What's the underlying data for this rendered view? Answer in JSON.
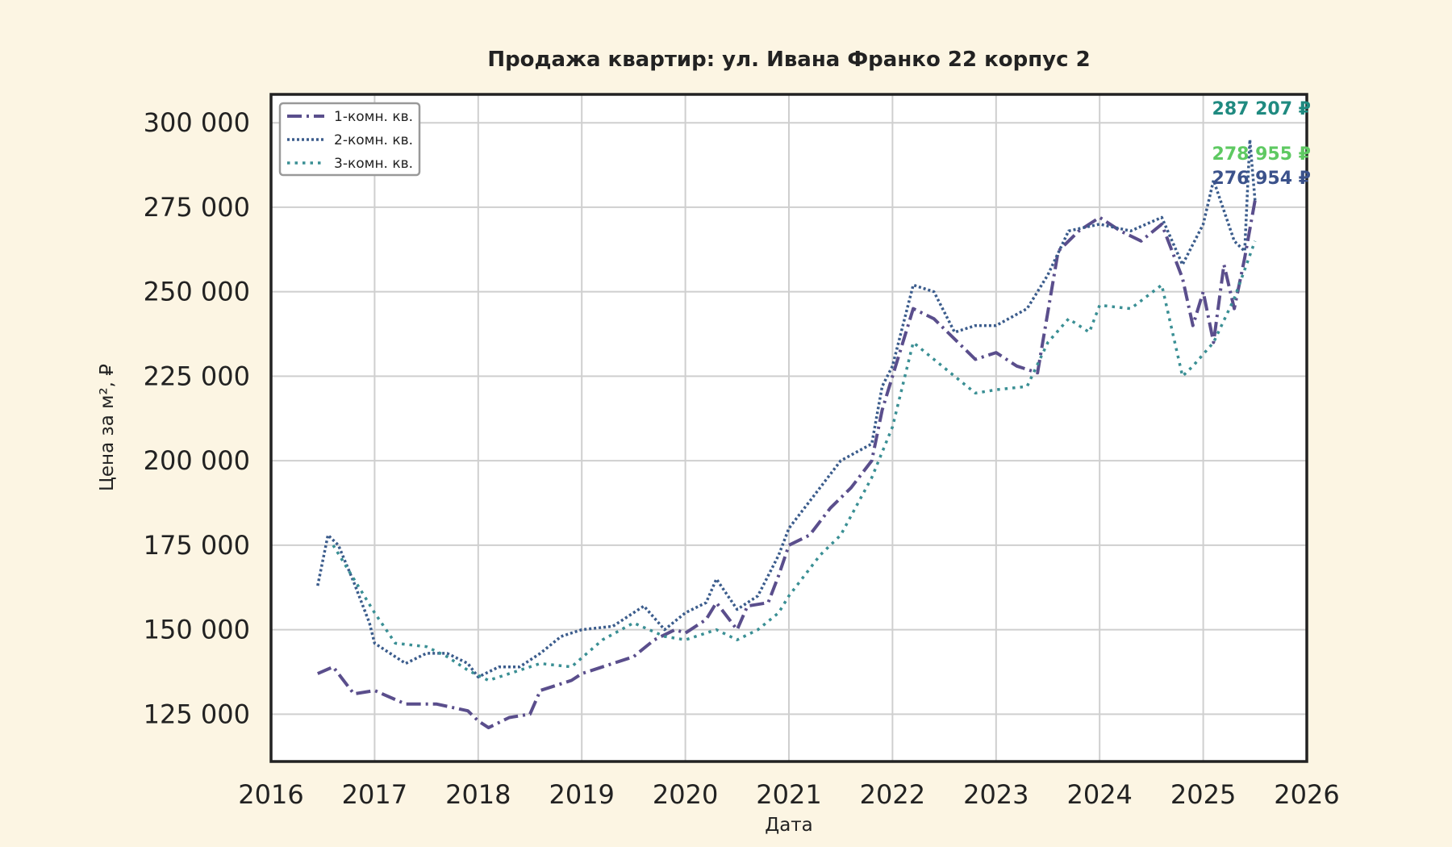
{
  "chart_data": {
    "type": "line",
    "title": "Продажа квартир: ул. Ивана Франко 22 корпус 2",
    "xlabel": "Дата",
    "ylabel": "Цена за м², ₽",
    "xlim": [
      2016,
      2026
    ],
    "ylim": [
      111000,
      308400
    ],
    "grid": true,
    "legend_placement": "top-left",
    "x_ticks": [
      "2016",
      "2017",
      "2018",
      "2019",
      "2020",
      "2021",
      "2022",
      "2023",
      "2024",
      "2025",
      "2026"
    ],
    "y_ticks": [
      125000,
      150000,
      175000,
      200000,
      225000,
      250000,
      275000,
      300000
    ],
    "y_tick_labels": [
      "125 000",
      "150 000",
      "175 000",
      "200 000",
      "225 000",
      "250 000",
      "275 000",
      "300 000"
    ],
    "background": "#fcf5e3",
    "series": [
      {
        "name": "1-комн. кв.",
        "color": "#5a4e8c",
        "style": "dashdot",
        "x": [
          2016.45,
          2016.6,
          2016.8,
          2017.0,
          2017.3,
          2017.6,
          2017.9,
          2018.0,
          2018.1,
          2018.3,
          2018.5,
          2018.6,
          2018.9,
          2019.0,
          2019.3,
          2019.5,
          2019.7,
          2019.9,
          2020.0,
          2020.2,
          2020.3,
          2020.5,
          2020.6,
          2020.8,
          2020.9,
          2021.0,
          2021.2,
          2021.4,
          2021.6,
          2021.8,
          2021.9,
          2022.0,
          2022.2,
          2022.4,
          2022.6,
          2022.8,
          2023.0,
          2023.2,
          2023.4,
          2023.6,
          2023.8,
          2024.0,
          2024.2,
          2024.4,
          2024.6,
          2024.8,
          2024.9,
          2025.0,
          2025.1,
          2025.2,
          2025.3,
          2025.4,
          2025.5
        ],
        "y": [
          137000,
          139000,
          131000,
          132000,
          128000,
          128000,
          126000,
          123000,
          121000,
          124000,
          125000,
          132000,
          135000,
          137000,
          140000,
          142000,
          147000,
          150000,
          149000,
          153000,
          158000,
          150000,
          157000,
          158000,
          166000,
          175000,
          178000,
          186000,
          192000,
          200000,
          215000,
          225000,
          245000,
          242000,
          236000,
          230000,
          232000,
          228000,
          226000,
          262000,
          268000,
          272000,
          268000,
          265000,
          270000,
          254000,
          240000,
          250000,
          235000,
          258000,
          245000,
          260000,
          277000
        ]
      },
      {
        "name": "2-комн. кв.",
        "color": "#3b5c8c",
        "style": "dotted",
        "x": [
          2016.45,
          2016.55,
          2016.65,
          2016.8,
          2016.95,
          2017.0,
          2017.3,
          2017.5,
          2017.7,
          2017.9,
          2018.0,
          2018.2,
          2018.4,
          2018.6,
          2018.8,
          2019.0,
          2019.3,
          2019.6,
          2019.8,
          2020.0,
          2020.2,
          2020.3,
          2020.5,
          2020.7,
          2020.9,
          2021.0,
          2021.3,
          2021.5,
          2021.8,
          2021.9,
          2022.0,
          2022.2,
          2022.4,
          2022.6,
          2022.8,
          2023.0,
          2023.3,
          2023.5,
          2023.7,
          2024.0,
          2024.3,
          2024.6,
          2024.8,
          2025.0,
          2025.1,
          2025.3,
          2025.4,
          2025.45,
          2025.5
        ],
        "y": [
          163000,
          178000,
          175000,
          164000,
          152000,
          146000,
          140000,
          143000,
          143000,
          140000,
          136000,
          139000,
          139000,
          143000,
          148000,
          150000,
          151000,
          157000,
          150000,
          155000,
          158000,
          165000,
          156000,
          160000,
          172000,
          180000,
          192000,
          200000,
          205000,
          222000,
          228000,
          252000,
          250000,
          238000,
          240000,
          240000,
          245000,
          255000,
          268000,
          270000,
          268000,
          272000,
          258000,
          270000,
          283000,
          265000,
          262000,
          295000,
          277000
        ]
      },
      {
        "name": "3-комн. кв.",
        "color": "#3a8f94",
        "style": "dotted-sparse",
        "x": [
          2016.6,
          2016.8,
          2017.0,
          2017.2,
          2017.5,
          2017.7,
          2017.9,
          2018.1,
          2018.3,
          2018.6,
          2018.9,
          2019.2,
          2019.5,
          2019.8,
          2020.0,
          2020.3,
          2020.5,
          2020.7,
          2020.9,
          2021.0,
          2021.3,
          2021.5,
          2021.8,
          2022.0,
          2022.2,
          2022.4,
          2022.6,
          2022.8,
          2023.0,
          2023.3,
          2023.5,
          2023.7,
          2023.9,
          2024.0,
          2024.3,
          2024.6,
          2024.8,
          2024.9,
          2025.1,
          2025.3,
          2025.5
        ],
        "y": [
          175000,
          165000,
          155000,
          146000,
          145000,
          142000,
          138000,
          135000,
          137000,
          140000,
          139000,
          147000,
          152000,
          148000,
          147000,
          150000,
          147000,
          150000,
          155000,
          160000,
          172000,
          178000,
          195000,
          210000,
          235000,
          230000,
          225000,
          220000,
          221000,
          222000,
          235000,
          242000,
          238000,
          246000,
          245000,
          252000,
          225000,
          228000,
          235000,
          248000,
          265000
        ]
      }
    ],
    "annotations": [
      {
        "text": "287 207 ₽",
        "color": "#1f8a80"
      },
      {
        "text": "278 955 ₽",
        "color": "#5ec962"
      },
      {
        "text": "276 954 ₽",
        "color": "#3b528b"
      }
    ]
  }
}
